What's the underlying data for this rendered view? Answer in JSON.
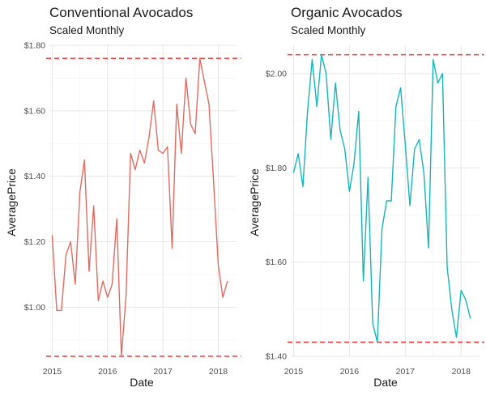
{
  "colors": {
    "conventional": "#e06b61",
    "organic": "#16b5b9",
    "reference_line": "#e63b3b"
  },
  "chart_data": [
    {
      "type": "line",
      "title": "Conventional Avocados",
      "subtitle": "Scaled Monthly",
      "xlabel": "Date",
      "ylabel": "AveragePrice",
      "xlim": [
        2014.95,
        2018.33
      ],
      "ylim": [
        0.85,
        1.8
      ],
      "x_ticks": [
        2015,
        2016,
        2017,
        2018
      ],
      "x_tick_labels": [
        "2015",
        "2016",
        "2017",
        "2018"
      ],
      "y_ticks": [
        1.0,
        1.2,
        1.4,
        1.6,
        1.8
      ],
      "y_tick_labels": [
        "$1.00",
        "$1.20",
        "$1.40",
        "$1.60",
        "$1.80"
      ],
      "reference_lines": [
        1.76,
        0.85
      ],
      "grid": true,
      "series": [
        {
          "color_key": "conventional",
          "x": [
            2015.0,
            2015.083,
            2015.167,
            2015.25,
            2015.333,
            2015.417,
            2015.5,
            2015.583,
            2015.667,
            2015.75,
            2015.833,
            2015.917,
            2016.0,
            2016.083,
            2016.167,
            2016.25,
            2016.333,
            2016.417,
            2016.5,
            2016.583,
            2016.667,
            2016.75,
            2016.833,
            2016.917,
            2017.0,
            2017.083,
            2017.167,
            2017.25,
            2017.333,
            2017.417,
            2017.5,
            2017.583,
            2017.667,
            2017.75,
            2017.833,
            2017.917,
            2018.0,
            2018.083,
            2018.167
          ],
          "values": [
            1.22,
            0.99,
            0.99,
            1.16,
            1.2,
            1.07,
            1.35,
            1.45,
            1.11,
            1.31,
            1.02,
            1.08,
            1.03,
            1.07,
            1.27,
            0.85,
            1.03,
            1.47,
            1.42,
            1.48,
            1.44,
            1.52,
            1.63,
            1.48,
            1.47,
            1.49,
            1.18,
            1.62,
            1.47,
            1.7,
            1.56,
            1.53,
            1.76,
            1.69,
            1.62,
            1.38,
            1.13,
            1.03,
            1.08
          ]
        }
      ]
    },
    {
      "type": "line",
      "title": "Organic Avocados",
      "subtitle": "Scaled Monthly",
      "xlabel": "Date",
      "ylabel": "AveragePrice",
      "xlim": [
        2014.95,
        2018.33
      ],
      "ylim": [
        1.4,
        2.06
      ],
      "x_ticks": [
        2015,
        2016,
        2017,
        2018
      ],
      "x_tick_labels": [
        "2015",
        "2016",
        "2017",
        "2018"
      ],
      "y_ticks": [
        1.4,
        1.6,
        1.8,
        2.0
      ],
      "y_tick_labels": [
        "$1.40",
        "$1.60",
        "$1.80",
        "$2.00"
      ],
      "reference_lines": [
        2.04,
        1.43
      ],
      "grid": true,
      "series": [
        {
          "color_key": "organic",
          "x": [
            2015.0,
            2015.083,
            2015.167,
            2015.25,
            2015.333,
            2015.417,
            2015.5,
            2015.583,
            2015.667,
            2015.75,
            2015.833,
            2015.917,
            2016.0,
            2016.083,
            2016.167,
            2016.25,
            2016.333,
            2016.417,
            2016.5,
            2016.583,
            2016.667,
            2016.75,
            2016.833,
            2016.917,
            2017.0,
            2017.083,
            2017.167,
            2017.25,
            2017.333,
            2017.417,
            2017.5,
            2017.583,
            2017.667,
            2017.75,
            2017.833,
            2017.917,
            2018.0,
            2018.083,
            2018.167
          ],
          "values": [
            1.79,
            1.83,
            1.76,
            1.92,
            2.03,
            1.93,
            2.04,
            2.0,
            1.86,
            1.98,
            1.88,
            1.84,
            1.75,
            1.81,
            1.92,
            1.56,
            1.78,
            1.47,
            1.43,
            1.67,
            1.73,
            1.73,
            1.93,
            1.97,
            1.85,
            1.72,
            1.84,
            1.86,
            1.79,
            1.63,
            2.03,
            1.98,
            2.0,
            1.59,
            1.5,
            1.44,
            1.54,
            1.52,
            1.48
          ]
        }
      ]
    }
  ]
}
